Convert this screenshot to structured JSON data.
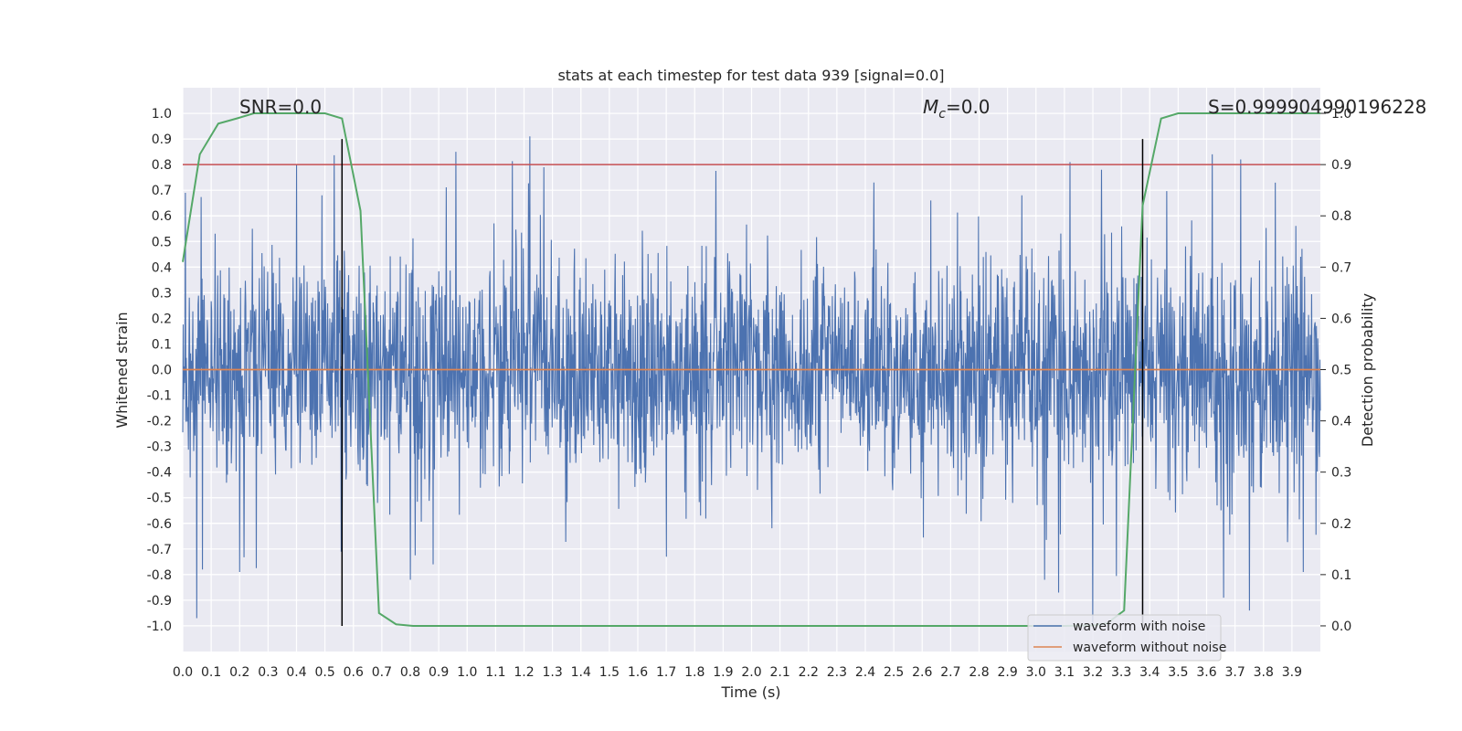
{
  "chart_data": {
    "type": "line",
    "title": "stats at each timestep for test data 939 [signal=0.0]",
    "xlabel": "Time (s)",
    "ylabel": "Whitened strain",
    "y2label": "Detection probability",
    "xlim": [
      0.0,
      4.0
    ],
    "ylim": [
      -1.1,
      1.1
    ],
    "y2lim": [
      -0.05,
      1.05
    ],
    "xticks": [
      "0.0",
      "0.1",
      "0.2",
      "0.3",
      "0.4",
      "0.5",
      "0.6",
      "0.7",
      "0.8",
      "0.9",
      "1.0",
      "1.1",
      "1.2",
      "1.3",
      "1.4",
      "1.5",
      "1.6",
      "1.7",
      "1.8",
      "1.9",
      "2.0",
      "2.1",
      "2.2",
      "2.3",
      "2.4",
      "2.5",
      "2.6",
      "2.7",
      "2.8",
      "2.9",
      "3.0",
      "3.1",
      "3.2",
      "3.3",
      "3.4",
      "3.5",
      "3.6",
      "3.7",
      "3.8",
      "3.9"
    ],
    "yticks": [
      "1.0",
      "0.9",
      "0.8",
      "0.7",
      "0.6",
      "0.5",
      "0.4",
      "0.3",
      "0.2",
      "0.1",
      "0.0",
      "-0.1",
      "-0.2",
      "-0.3",
      "-0.4",
      "-0.5",
      "-0.6",
      "-0.7",
      "-0.8",
      "-0.9",
      "-1.0"
    ],
    "y2ticks": [
      "1.0",
      "0.9",
      "0.8",
      "0.7",
      "0.6",
      "0.5",
      "0.4",
      "0.3",
      "0.2",
      "0.1",
      "0.0"
    ],
    "grid": true,
    "legend_placement": "lower-right",
    "annotations": {
      "snr": "SNR=0.0",
      "mc_symbol": "M",
      "mc_sub": "c",
      "mc_value": "=0.0",
      "s": "S=0.999904990196228"
    },
    "series": [
      {
        "name": "waveform with noise",
        "color": "#4c72b0",
        "kind": "noise",
        "envelope_p": 0.45,
        "extremes": [
          {
            "x": 0.01,
            "y": 0.69
          },
          {
            "x": 0.05,
            "y": -0.97
          },
          {
            "x": 0.07,
            "y": -0.78
          },
          {
            "x": 0.2,
            "y": -0.79
          },
          {
            "x": 0.4,
            "y": 0.8
          },
          {
            "x": 0.49,
            "y": 0.68
          },
          {
            "x": 0.56,
            "y": -0.66
          },
          {
            "x": 0.8,
            "y": -0.82
          },
          {
            "x": 0.88,
            "y": -0.76
          },
          {
            "x": 0.96,
            "y": 0.85
          },
          {
            "x": 1.22,
            "y": 0.91
          },
          {
            "x": 1.27,
            "y": 0.79
          },
          {
            "x": 1.7,
            "y": -0.73
          },
          {
            "x": 2.43,
            "y": 0.73
          },
          {
            "x": 2.63,
            "y": 0.66
          },
          {
            "x": 2.95,
            "y": 0.68
          },
          {
            "x": 3.03,
            "y": -0.82
          },
          {
            "x": 3.08,
            "y": -0.87
          },
          {
            "x": 3.12,
            "y": 0.81
          },
          {
            "x": 3.2,
            "y": -1.0
          },
          {
            "x": 3.23,
            "y": 0.78
          },
          {
            "x": 3.62,
            "y": 0.84
          },
          {
            "x": 3.66,
            "y": -0.89
          },
          {
            "x": 3.72,
            "y": 0.82
          },
          {
            "x": 3.75,
            "y": -0.94
          },
          {
            "x": 3.94,
            "y": -0.79
          }
        ]
      },
      {
        "name": "waveform without noise",
        "color": "#dd8452",
        "x": [
          0.0,
          4.0
        ],
        "y": [
          0.0,
          0.0
        ]
      },
      {
        "name": "",
        "axis": "y2",
        "color": "#55a868",
        "x": [
          0.0,
          0.06,
          0.125,
          0.19,
          0.25,
          0.31,
          0.375,
          0.44,
          0.5,
          0.56,
          0.625,
          0.69,
          0.75,
          0.81,
          1.0,
          2.0,
          3.0,
          3.1,
          3.2,
          3.25,
          3.31,
          3.375,
          3.44,
          3.5,
          4.0
        ],
        "y": [
          0.71,
          0.92,
          0.98,
          0.99,
          1.0,
          1.0,
          1.0,
          1.0,
          1.0,
          0.99,
          0.81,
          0.025,
          0.003,
          0.0,
          0.0,
          0.0,
          0.0,
          0.0,
          0.001,
          0.005,
          0.03,
          0.82,
          0.99,
          1.0,
          1.0
        ]
      }
    ],
    "hlines": [
      {
        "axis": "y2",
        "y": 0.9,
        "color": "#c44e52"
      }
    ],
    "vlines": [
      {
        "x": 0.56,
        "ymin": -1.0,
        "ymax": 0.9,
        "color": "#000000"
      },
      {
        "x": 3.375,
        "ymin": -1.0,
        "ymax": 0.9,
        "color": "#000000"
      }
    ]
  }
}
